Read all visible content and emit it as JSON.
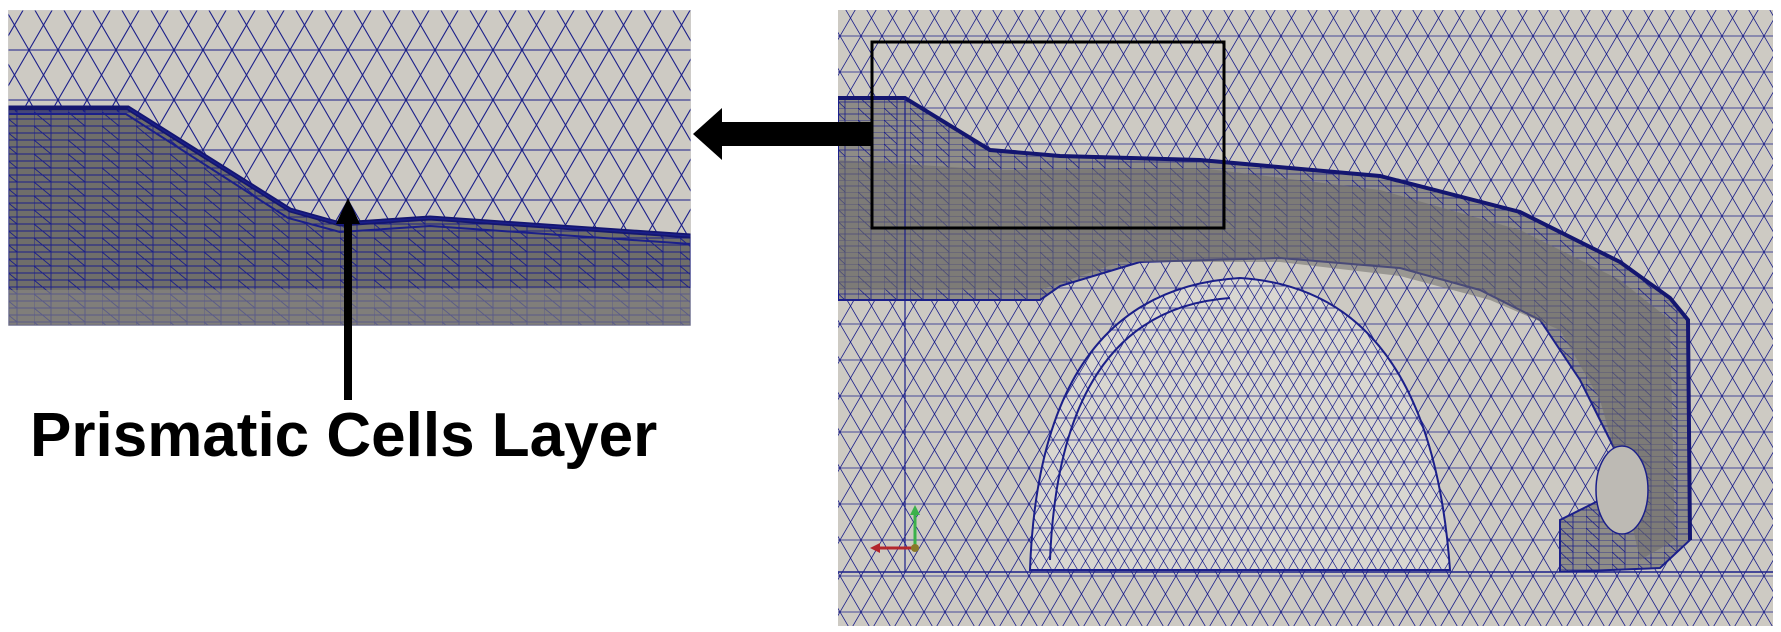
{
  "caption": {
    "text": "Prismatic Cells Layer"
  },
  "colors": {
    "background": "#ffffff",
    "mesh_fill": "#cdcac3",
    "mesh_edge": "#1b1f8a",
    "prism_fill": "#6f6e6a",
    "prism_fill_light": "#9b9994",
    "annotation": "#000000",
    "axis_x": "#b3262c",
    "axis_y": "#3bb14a"
  },
  "panels": {
    "zoom_inset": {
      "label": "zoom-inset"
    },
    "full_view": {
      "label": "full-mesh-view"
    }
  }
}
